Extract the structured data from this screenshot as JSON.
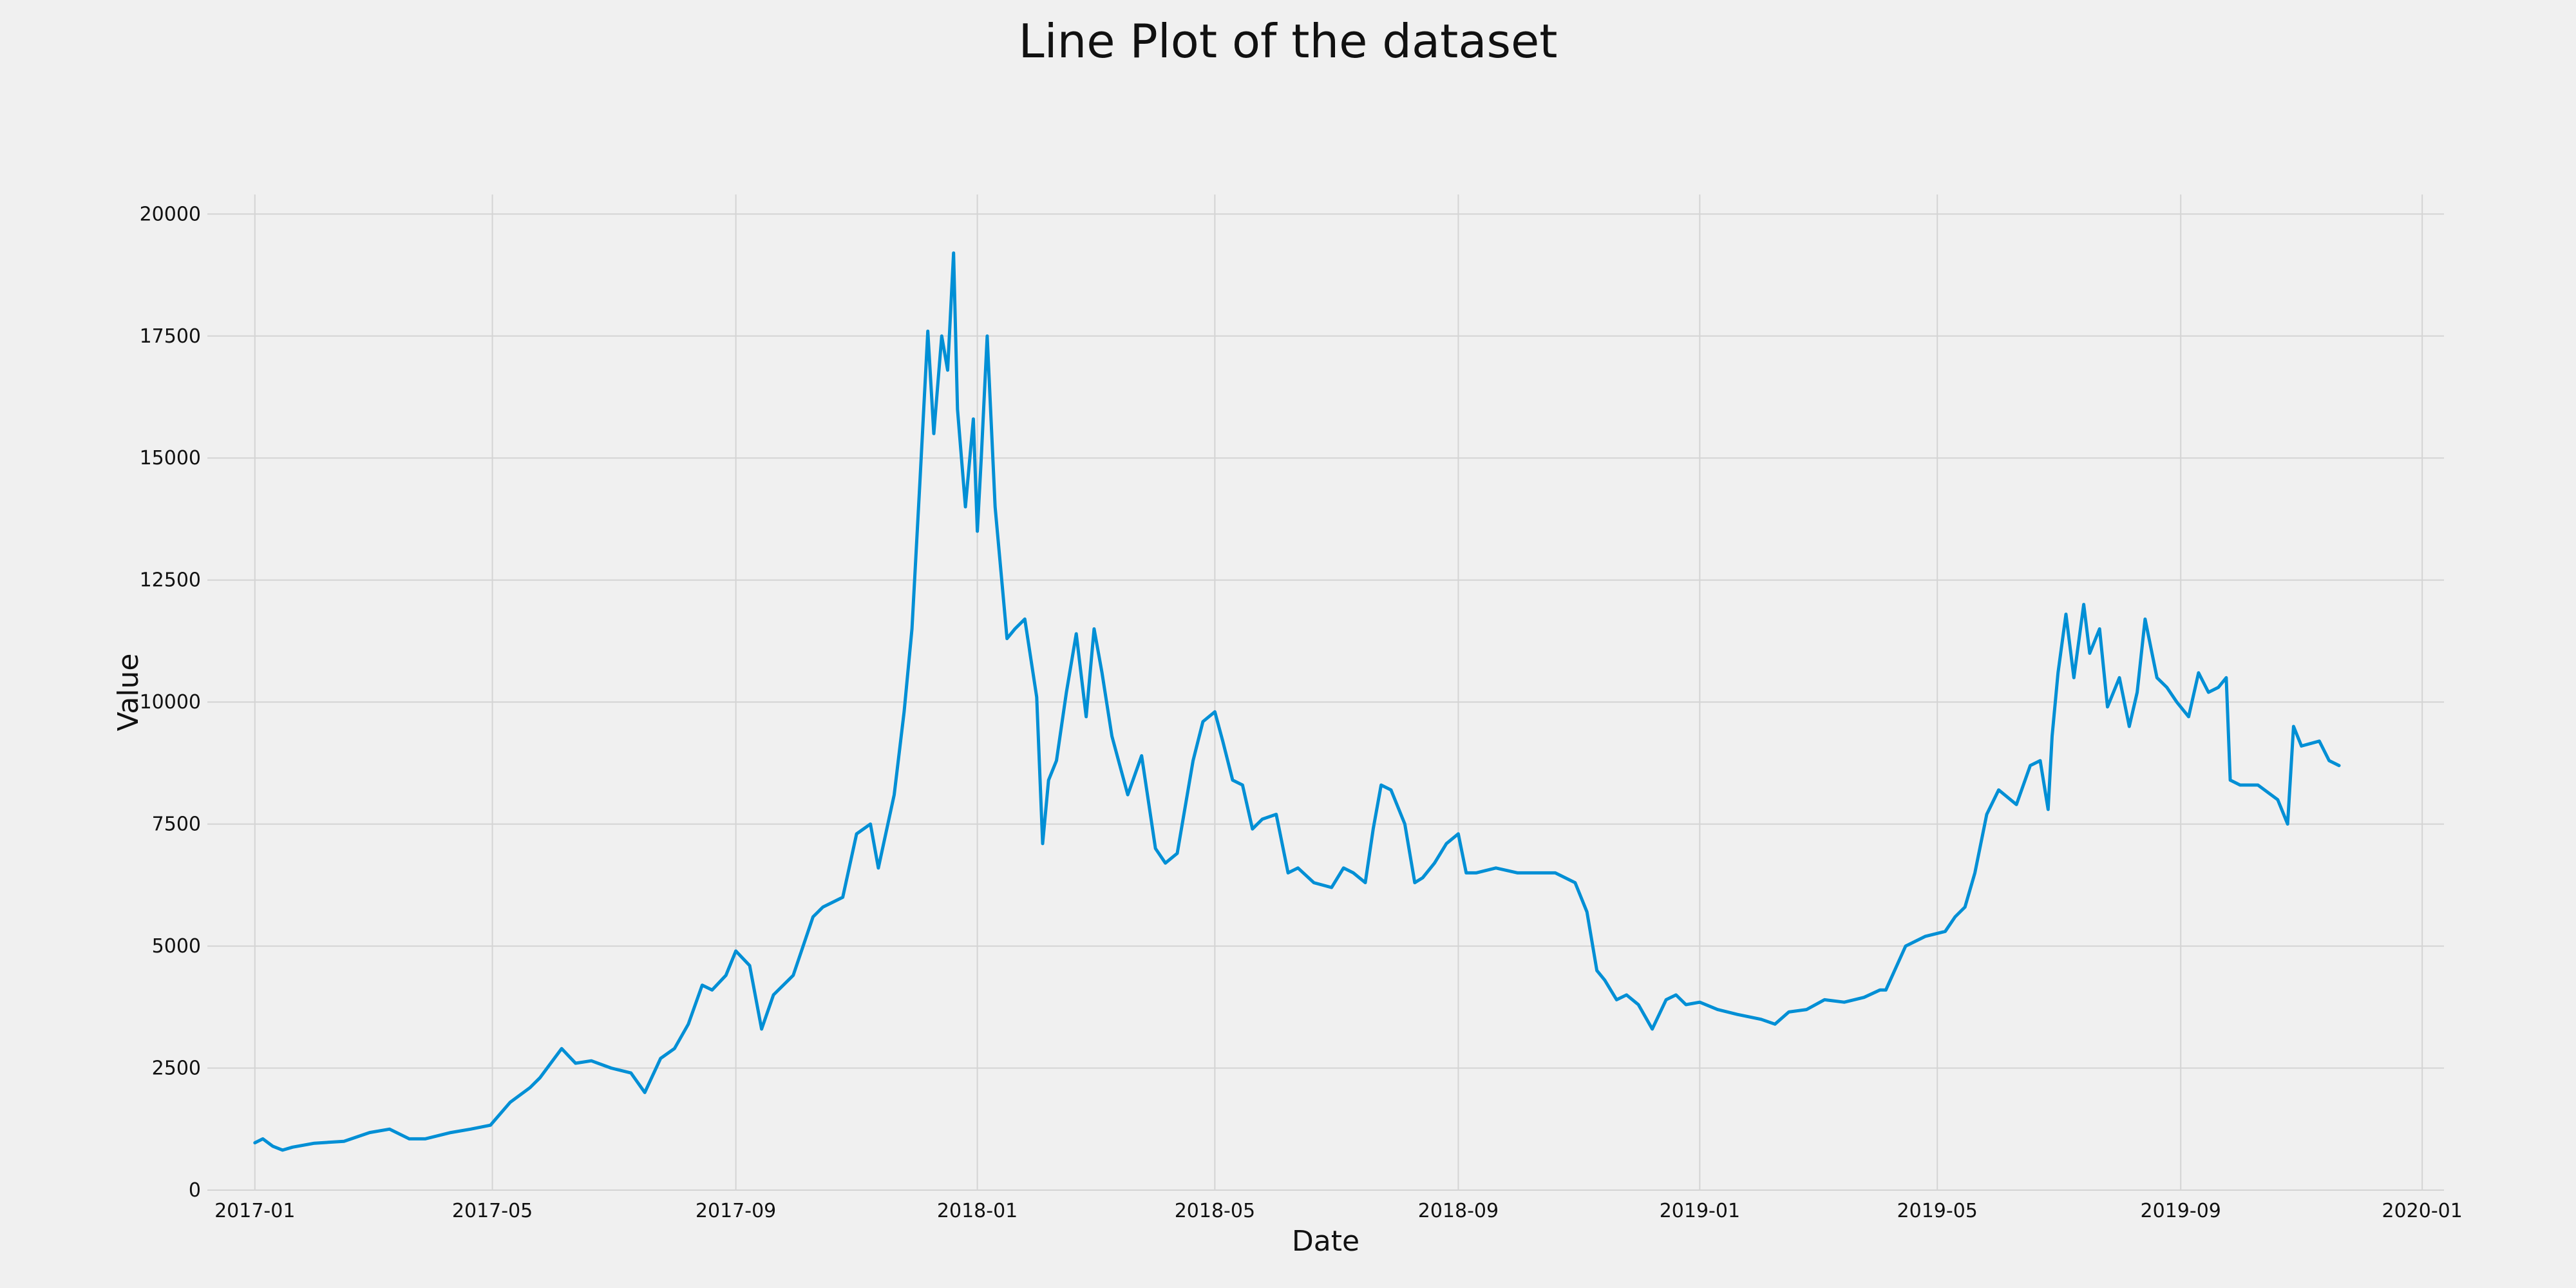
{
  "chart_data": {
    "type": "line",
    "title": "Line Plot of the dataset",
    "xlabel": "Date",
    "ylabel": "Value",
    "x_ticks": [
      "2017-01",
      "2017-05",
      "2017-09",
      "2018-01",
      "2018-05",
      "2018-09",
      "2019-01",
      "2019-05",
      "2019-09",
      "2020-01"
    ],
    "y_ticks": [
      0,
      2500,
      5000,
      7500,
      10000,
      12500,
      15000,
      17500,
      20000
    ],
    "xlim": [
      "2016-12-08",
      "2020-01-12"
    ],
    "ylim": [
      0,
      20400
    ],
    "grid": true,
    "legend": "none",
    "line_color": "#008fd5",
    "series": [
      {
        "x": [
          "2017-01-01",
          "2017-01-05",
          "2017-01-10",
          "2017-01-15",
          "2017-01-20",
          "2017-01-31",
          "2017-02-15",
          "2017-02-28",
          "2017-03-10",
          "2017-03-20",
          "2017-03-28",
          "2017-04-10",
          "2017-04-20",
          "2017-04-30",
          "2017-05-10",
          "2017-05-20",
          "2017-05-25",
          "2017-06-05",
          "2017-06-12",
          "2017-06-20",
          "2017-06-30",
          "2017-07-10",
          "2017-07-17",
          "2017-07-25",
          "2017-08-01",
          "2017-08-08",
          "2017-08-15",
          "2017-08-20",
          "2017-08-27",
          "2017-09-01",
          "2017-09-08",
          "2017-09-14",
          "2017-09-20",
          "2017-09-30",
          "2017-10-10",
          "2017-10-15",
          "2017-10-25",
          "2017-11-01",
          "2017-11-08",
          "2017-11-12",
          "2017-11-20",
          "2017-11-25",
          "2017-11-29",
          "2017-12-03",
          "2017-12-07",
          "2017-12-10",
          "2017-12-14",
          "2017-12-17",
          "2017-12-20",
          "2017-12-22",
          "2017-12-26",
          "2017-12-30",
          "2018-01-01",
          "2018-01-03",
          "2018-01-06",
          "2018-01-10",
          "2018-01-16",
          "2018-01-20",
          "2018-01-25",
          "2018-01-31",
          "2018-02-03",
          "2018-02-06",
          "2018-02-10",
          "2018-02-15",
          "2018-02-20",
          "2018-02-25",
          "2018-03-01",
          "2018-03-05",
          "2018-03-10",
          "2018-03-18",
          "2018-03-25",
          "2018-04-01",
          "2018-04-06",
          "2018-04-12",
          "2018-04-20",
          "2018-04-25",
          "2018-05-01",
          "2018-05-05",
          "2018-05-10",
          "2018-05-15",
          "2018-05-20",
          "2018-05-25",
          "2018-06-01",
          "2018-06-07",
          "2018-06-12",
          "2018-06-20",
          "2018-06-29",
          "2018-07-05",
          "2018-07-10",
          "2018-07-16",
          "2018-07-20",
          "2018-07-24",
          "2018-07-29",
          "2018-08-05",
          "2018-08-10",
          "2018-08-14",
          "2018-08-20",
          "2018-08-26",
          "2018-09-01",
          "2018-09-05",
          "2018-09-10",
          "2018-09-20",
          "2018-10-01",
          "2018-10-10",
          "2018-10-20",
          "2018-10-30",
          "2018-11-05",
          "2018-11-10",
          "2018-11-14",
          "2018-11-20",
          "2018-11-25",
          "2018-12-01",
          "2018-12-08",
          "2018-12-15",
          "2018-12-20",
          "2018-12-25",
          "2019-01-01",
          "2019-01-10",
          "2019-01-20",
          "2019-02-01",
          "2019-02-08",
          "2019-02-15",
          "2019-02-24",
          "2019-03-05",
          "2019-03-15",
          "2019-03-25",
          "2019-04-02",
          "2019-04-05",
          "2019-04-15",
          "2019-04-25",
          "2019-05-05",
          "2019-05-10",
          "2019-05-15",
          "2019-05-20",
          "2019-05-26",
          "2019-06-01",
          "2019-06-10",
          "2019-06-17",
          "2019-06-22",
          "2019-06-26",
          "2019-06-28",
          "2019-07-01",
          "2019-07-05",
          "2019-07-09",
          "2019-07-14",
          "2019-07-17",
          "2019-07-22",
          "2019-07-26",
          "2019-08-01",
          "2019-08-06",
          "2019-08-10",
          "2019-08-14",
          "2019-08-20",
          "2019-08-25",
          "2019-08-30",
          "2019-09-05",
          "2019-09-10",
          "2019-09-15",
          "2019-09-20",
          "2019-09-24",
          "2019-09-26",
          "2019-10-01",
          "2019-10-10",
          "2019-10-20",
          "2019-10-25",
          "2019-10-28",
          "2019-11-01",
          "2019-11-10",
          "2019-11-15",
          "2019-11-20"
        ],
        "y": [
          970,
          1050,
          900,
          820,
          880,
          960,
          1000,
          1180,
          1250,
          1050,
          1050,
          1180,
          1250,
          1330,
          1800,
          2100,
          2300,
          2900,
          2600,
          2650,
          2500,
          2400,
          2000,
          2700,
          2900,
          3400,
          4200,
          4100,
          4400,
          4900,
          4600,
          3300,
          4000,
          4400,
          5600,
          5800,
          6000,
          7300,
          7500,
          6600,
          8100,
          9800,
          11500,
          14500,
          17600,
          15500,
          17500,
          16800,
          19200,
          16000,
          14000,
          15800,
          13500,
          15000,
          17500,
          14000,
          11300,
          11500,
          11700,
          10100,
          7100,
          8400,
          8800,
          10200,
          11400,
          9700,
          11500,
          10600,
          9300,
          8100,
          8900,
          7000,
          6700,
          6900,
          8800,
          9600,
          9800,
          9200,
          8400,
          8300,
          7400,
          7600,
          7700,
          6500,
          6600,
          6300,
          6200,
          6600,
          6500,
          6300,
          7400,
          8300,
          8200,
          7500,
          6300,
          6400,
          6700,
          7100,
          7300,
          6500,
          6500,
          6600,
          6500,
          6500,
          6500,
          6300,
          5700,
          4500,
          4300,
          3900,
          4000,
          3800,
          3300,
          3900,
          4000,
          3800,
          3850,
          3700,
          3600,
          3500,
          3400,
          3650,
          3700,
          3900,
          3850,
          3950,
          4100,
          4100,
          5000,
          5200,
          5300,
          5600,
          5800,
          6500,
          7700,
          8200,
          7900,
          8700,
          8800,
          7800,
          9300,
          10600,
          11800,
          10500,
          12000,
          11000,
          11500,
          9900,
          10500,
          9500,
          10200,
          11700,
          10500,
          10300,
          10000,
          9700,
          10600,
          10200,
          10300,
          10500,
          8400,
          8300,
          8300,
          8000,
          7500,
          9500,
          9100,
          9200,
          8800,
          8700
        ]
      }
    ]
  }
}
